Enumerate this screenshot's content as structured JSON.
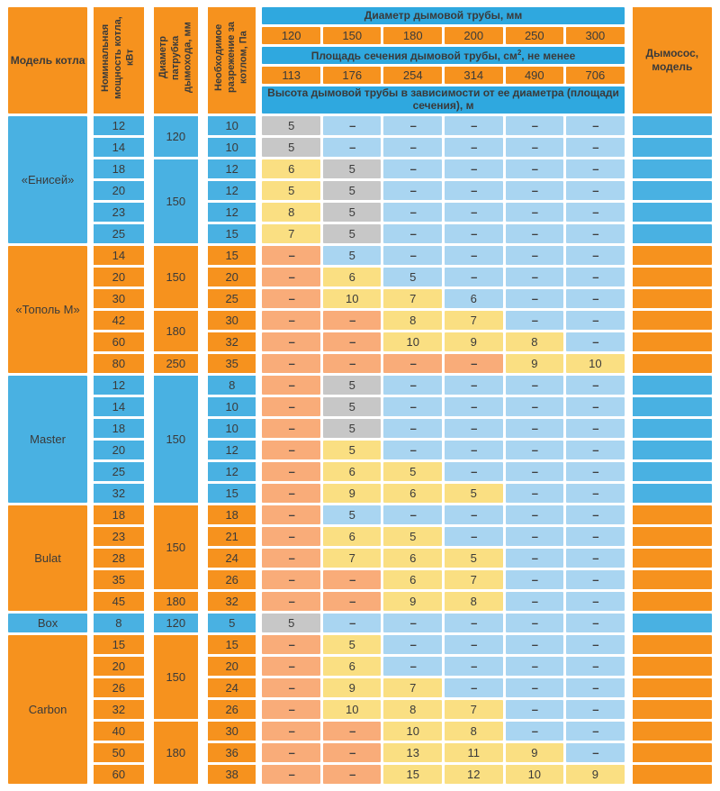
{
  "header": {
    "model_col": "Модель котла",
    "power_col": "Номинальная мощность котла, кВт",
    "pipe_col": "Диаметр патрубка дымохода, мм",
    "draft_col": "Необходимое разрежение за котлом, Па",
    "diameter_title": "Диаметр дымовой трубы, мм",
    "diameters": [
      "120",
      "150",
      "180",
      "200",
      "250",
      "300"
    ],
    "area_title_pre": "Площадь сечения дымовой трубы, см",
    "area_sup": "2",
    "area_title_post": ", не менее",
    "areas": [
      "113",
      "176",
      "254",
      "314",
      "490",
      "706"
    ],
    "height_title": "Высота дымовой трубы в зависимости от ее диаметра (площади сечения), м",
    "fan_col": "Дымосос, модель"
  },
  "colors": {
    "orange": "#f6921e",
    "blue": "#49b1e2",
    "header_blue": "#2fa8df",
    "gray": "#c7c7c7",
    "yellow": "#fadf82",
    "light_blue": "#a9d5f1",
    "light_orange": "#f9ac79"
  },
  "dash": "–",
  "groups": [
    {
      "name": "«Енисей»",
      "tone": "blue",
      "rows": [
        {
          "power": "12",
          "pipe": {
            "v": "120",
            "span": 2
          },
          "draft": "10",
          "cells": [
            [
              "5",
              "g"
            ],
            [
              "–",
              "lb"
            ],
            [
              "–",
              "lb"
            ],
            [
              "–",
              "lb"
            ],
            [
              "–",
              "lb"
            ],
            [
              "–",
              "lb"
            ]
          ]
        },
        {
          "power": "14",
          "draft": "10",
          "cells": [
            [
              "5",
              "g"
            ],
            [
              "–",
              "lb"
            ],
            [
              "–",
              "lb"
            ],
            [
              "–",
              "lb"
            ],
            [
              "–",
              "lb"
            ],
            [
              "–",
              "lb"
            ]
          ]
        },
        {
          "power": "18",
          "pipe": {
            "v": "150",
            "span": 4
          },
          "draft": "12",
          "cells": [
            [
              "6",
              "y"
            ],
            [
              "5",
              "g"
            ],
            [
              "–",
              "lb"
            ],
            [
              "–",
              "lb"
            ],
            [
              "–",
              "lb"
            ],
            [
              "–",
              "lb"
            ]
          ]
        },
        {
          "power": "20",
          "draft": "12",
          "cells": [
            [
              "5",
              "y"
            ],
            [
              "5",
              "g"
            ],
            [
              "–",
              "lb"
            ],
            [
              "–",
              "lb"
            ],
            [
              "–",
              "lb"
            ],
            [
              "–",
              "lb"
            ]
          ]
        },
        {
          "power": "23",
          "draft": "12",
          "cells": [
            [
              "8",
              "y"
            ],
            [
              "5",
              "g"
            ],
            [
              "–",
              "lb"
            ],
            [
              "–",
              "lb"
            ],
            [
              "–",
              "lb"
            ],
            [
              "–",
              "lb"
            ]
          ]
        },
        {
          "power": "25",
          "draft": "15",
          "cells": [
            [
              "7",
              "y"
            ],
            [
              "5",
              "g"
            ],
            [
              "–",
              "lb"
            ],
            [
              "–",
              "lb"
            ],
            [
              "–",
              "lb"
            ],
            [
              "–",
              "lb"
            ]
          ]
        }
      ]
    },
    {
      "name": "«Тополь М»",
      "tone": "orange",
      "rows": [
        {
          "power": "14",
          "pipe": {
            "v": "150",
            "span": 3
          },
          "draft": "15",
          "cells": [
            [
              "–",
              "lo"
            ],
            [
              "5",
              "lb"
            ],
            [
              "–",
              "lb"
            ],
            [
              "–",
              "lb"
            ],
            [
              "–",
              "lb"
            ],
            [
              "–",
              "lb"
            ]
          ]
        },
        {
          "power": "20",
          "draft": "20",
          "cells": [
            [
              "–",
              "lo"
            ],
            [
              "6",
              "y"
            ],
            [
              "5",
              "lb"
            ],
            [
              "–",
              "lb"
            ],
            [
              "–",
              "lb"
            ],
            [
              "–",
              "lb"
            ]
          ]
        },
        {
          "power": "30",
          "draft": "25",
          "cells": [
            [
              "–",
              "lo"
            ],
            [
              "10",
              "y"
            ],
            [
              "7",
              "y"
            ],
            [
              "6",
              "lb"
            ],
            [
              "–",
              "lb"
            ],
            [
              "–",
              "lb"
            ]
          ]
        },
        {
          "power": "42",
          "pipe": {
            "v": "180",
            "span": 2
          },
          "draft": "30",
          "cells": [
            [
              "–",
              "lo"
            ],
            [
              "–",
              "lo"
            ],
            [
              "8",
              "y"
            ],
            [
              "7",
              "y"
            ],
            [
              "–",
              "lb"
            ],
            [
              "–",
              "lb"
            ]
          ]
        },
        {
          "power": "60",
          "draft": "32",
          "cells": [
            [
              "–",
              "lo"
            ],
            [
              "–",
              "lo"
            ],
            [
              "10",
              "y"
            ],
            [
              "9",
              "y"
            ],
            [
              "8",
              "y"
            ],
            [
              "–",
              "lb"
            ]
          ]
        },
        {
          "power": "80",
          "pipe": {
            "v": "250",
            "span": 1
          },
          "draft": "35",
          "cells": [
            [
              "–",
              "lo"
            ],
            [
              "–",
              "lo"
            ],
            [
              "–",
              "lo"
            ],
            [
              "–",
              "lo"
            ],
            [
              "9",
              "y"
            ],
            [
              "10",
              "y"
            ]
          ]
        }
      ]
    },
    {
      "name": "Master",
      "tone": "blue",
      "rows": [
        {
          "power": "12",
          "pipe": {
            "v": "150",
            "span": 6
          },
          "draft": "8",
          "cells": [
            [
              "–",
              "lo"
            ],
            [
              "5",
              "g"
            ],
            [
              "–",
              "lb"
            ],
            [
              "–",
              "lb"
            ],
            [
              "–",
              "lb"
            ],
            [
              "–",
              "lb"
            ]
          ]
        },
        {
          "power": "14",
          "draft": "10",
          "cells": [
            [
              "–",
              "lo"
            ],
            [
              "5",
              "g"
            ],
            [
              "–",
              "lb"
            ],
            [
              "–",
              "lb"
            ],
            [
              "–",
              "lb"
            ],
            [
              "–",
              "lb"
            ]
          ]
        },
        {
          "power": "18",
          "draft": "10",
          "cells": [
            [
              "–",
              "lo"
            ],
            [
              "5",
              "g"
            ],
            [
              "–",
              "lb"
            ],
            [
              "–",
              "lb"
            ],
            [
              "–",
              "lb"
            ],
            [
              "–",
              "lb"
            ]
          ]
        },
        {
          "power": "20",
          "draft": "12",
          "cells": [
            [
              "–",
              "lo"
            ],
            [
              "5",
              "y"
            ],
            [
              "–",
              "lb"
            ],
            [
              "–",
              "lb"
            ],
            [
              "–",
              "lb"
            ],
            [
              "–",
              "lb"
            ]
          ]
        },
        {
          "power": "25",
          "draft": "12",
          "cells": [
            [
              "–",
              "lo"
            ],
            [
              "6",
              "y"
            ],
            [
              "5",
              "y"
            ],
            [
              "–",
              "lb"
            ],
            [
              "–",
              "lb"
            ],
            [
              "–",
              "lb"
            ]
          ]
        },
        {
          "power": "32",
          "draft": "15",
          "cells": [
            [
              "–",
              "lo"
            ],
            [
              "9",
              "y"
            ],
            [
              "6",
              "y"
            ],
            [
              "5",
              "y"
            ],
            [
              "–",
              "lb"
            ],
            [
              "–",
              "lb"
            ]
          ]
        }
      ]
    },
    {
      "name": "Bulat",
      "tone": "orange",
      "rows": [
        {
          "power": "18",
          "pipe": {
            "v": "150",
            "span": 4
          },
          "draft": "18",
          "cells": [
            [
              "–",
              "lo"
            ],
            [
              "5",
              "lb"
            ],
            [
              "–",
              "lb"
            ],
            [
              "–",
              "lb"
            ],
            [
              "–",
              "lb"
            ],
            [
              "–",
              "lb"
            ]
          ]
        },
        {
          "power": "23",
          "draft": "21",
          "cells": [
            [
              "–",
              "lo"
            ],
            [
              "6",
              "y"
            ],
            [
              "5",
              "y"
            ],
            [
              "–",
              "lb"
            ],
            [
              "–",
              "lb"
            ],
            [
              "–",
              "lb"
            ]
          ]
        },
        {
          "power": "28",
          "draft": "24",
          "cells": [
            [
              "–",
              "lo"
            ],
            [
              "7",
              "y"
            ],
            [
              "6",
              "y"
            ],
            [
              "5",
              "y"
            ],
            [
              "–",
              "lb"
            ],
            [
              "–",
              "lb"
            ]
          ]
        },
        {
          "power": "35",
          "draft": "26",
          "cells": [
            [
              "–",
              "lo"
            ],
            [
              "–",
              "lo"
            ],
            [
              "6",
              "y"
            ],
            [
              "7",
              "y"
            ],
            [
              "–",
              "lb"
            ],
            [
              "–",
              "lb"
            ]
          ]
        },
        {
          "power": "45",
          "pipe": {
            "v": "180",
            "span": 1
          },
          "draft": "32",
          "cells": [
            [
              "–",
              "lo"
            ],
            [
              "–",
              "lo"
            ],
            [
              "9",
              "y"
            ],
            [
              "8",
              "y"
            ],
            [
              "–",
              "lb"
            ],
            [
              "–",
              "lb"
            ]
          ]
        }
      ]
    },
    {
      "name": "Box",
      "tone": "blue",
      "rows": [
        {
          "power": "8",
          "pipe": {
            "v": "120",
            "span": 1
          },
          "draft": "5",
          "cells": [
            [
              "5",
              "g"
            ],
            [
              "–",
              "lb"
            ],
            [
              "–",
              "lb"
            ],
            [
              "–",
              "lb"
            ],
            [
              "–",
              "lb"
            ],
            [
              "–",
              "lb"
            ]
          ]
        }
      ]
    },
    {
      "name": "Carbon",
      "tone": "orange",
      "rows": [
        {
          "power": "15",
          "pipe": {
            "v": "150",
            "span": 4
          },
          "draft": "15",
          "cells": [
            [
              "–",
              "lo"
            ],
            [
              "5",
              "y"
            ],
            [
              "–",
              "lb"
            ],
            [
              "–",
              "lb"
            ],
            [
              "–",
              "lb"
            ],
            [
              "–",
              "lb"
            ]
          ]
        },
        {
          "power": "20",
          "draft": "20",
          "cells": [
            [
              "–",
              "lo"
            ],
            [
              "6",
              "y"
            ],
            [
              "–",
              "lb"
            ],
            [
              "–",
              "lb"
            ],
            [
              "–",
              "lb"
            ],
            [
              "–",
              "lb"
            ]
          ]
        },
        {
          "power": "26",
          "draft": "24",
          "cells": [
            [
              "–",
              "lo"
            ],
            [
              "9",
              "y"
            ],
            [
              "7",
              "y"
            ],
            [
              "–",
              "lb"
            ],
            [
              "–",
              "lb"
            ],
            [
              "–",
              "lb"
            ]
          ]
        },
        {
          "power": "32",
          "draft": "26",
          "cells": [
            [
              "–",
              "lo"
            ],
            [
              "10",
              "y"
            ],
            [
              "8",
              "y"
            ],
            [
              "7",
              "y"
            ],
            [
              "–",
              "lb"
            ],
            [
              "–",
              "lb"
            ]
          ]
        },
        {
          "power": "40",
          "pipe": {
            "v": "180",
            "span": 3
          },
          "draft": "30",
          "cells": [
            [
              "–",
              "lo"
            ],
            [
              "–",
              "lo"
            ],
            [
              "10",
              "y"
            ],
            [
              "8",
              "y"
            ],
            [
              "–",
              "lb"
            ],
            [
              "–",
              "lb"
            ]
          ]
        },
        {
          "power": "50",
          "draft": "36",
          "cells": [
            [
              "–",
              "lo"
            ],
            [
              "–",
              "lo"
            ],
            [
              "13",
              "y"
            ],
            [
              "11",
              "y"
            ],
            [
              "9",
              "y"
            ],
            [
              "–",
              "lb"
            ]
          ]
        },
        {
          "power": "60",
          "draft": "38",
          "cells": [
            [
              "–",
              "lo"
            ],
            [
              "–",
              "lo"
            ],
            [
              "15",
              "y"
            ],
            [
              "12",
              "y"
            ],
            [
              "10",
              "y"
            ],
            [
              "9",
              "y"
            ]
          ]
        }
      ]
    }
  ]
}
